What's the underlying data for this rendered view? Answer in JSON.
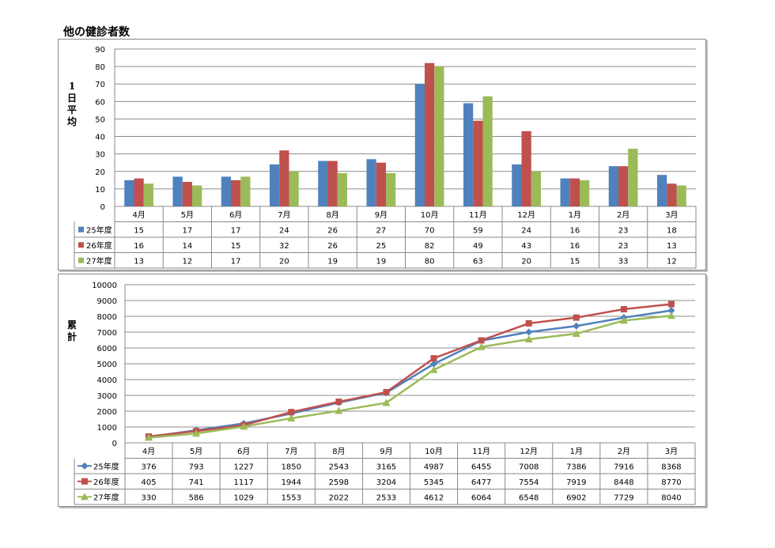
{
  "title": "他の健診者数",
  "colors": {
    "s25": "#4f81bd",
    "s26": "#c0504d",
    "s27": "#9bbb59"
  },
  "chart_data": [
    {
      "type": "bar",
      "ylabel": "1日平均",
      "ylim": [
        0,
        90
      ],
      "ytick_step": 10,
      "categories": [
        "4月",
        "5月",
        "6月",
        "7月",
        "8月",
        "9月",
        "10月",
        "11月",
        "12月",
        "1月",
        "2月",
        "3月"
      ],
      "series": [
        {
          "name": "25年度",
          "values": [
            15,
            17,
            17,
            24,
            26,
            27,
            70,
            59,
            24,
            16,
            23,
            18
          ]
        },
        {
          "name": "26年度",
          "values": [
            16,
            14,
            15,
            32,
            26,
            25,
            82,
            49,
            43,
            16,
            23,
            13
          ]
        },
        {
          "name": "27年度",
          "values": [
            13,
            12,
            17,
            20,
            19,
            19,
            80,
            63,
            20,
            15,
            33,
            12
          ]
        }
      ],
      "grid": true,
      "legend": "data table"
    },
    {
      "type": "line",
      "ylabel": "累計",
      "ylim": [
        0,
        10000
      ],
      "ytick_step": 1000,
      "categories": [
        "4月",
        "5月",
        "6月",
        "7月",
        "8月",
        "9月",
        "10月",
        "11月",
        "12月",
        "1月",
        "2月",
        "3月"
      ],
      "series": [
        {
          "name": "25年度",
          "marker": "diamond",
          "values": [
            376,
            793,
            1227,
            1850,
            2543,
            3165,
            4987,
            6455,
            7008,
            7386,
            7916,
            8368
          ]
        },
        {
          "name": "26年度",
          "marker": "square",
          "values": [
            405,
            741,
            1117,
            1944,
            2598,
            3204,
            5345,
            6477,
            7554,
            7919,
            8448,
            8770
          ]
        },
        {
          "name": "27年度",
          "marker": "triangle",
          "values": [
            330,
            586,
            1029,
            1553,
            2022,
            2533,
            4612,
            6064,
            6548,
            6902,
            7729,
            8040
          ]
        }
      ],
      "grid": true,
      "legend": "data table"
    }
  ]
}
